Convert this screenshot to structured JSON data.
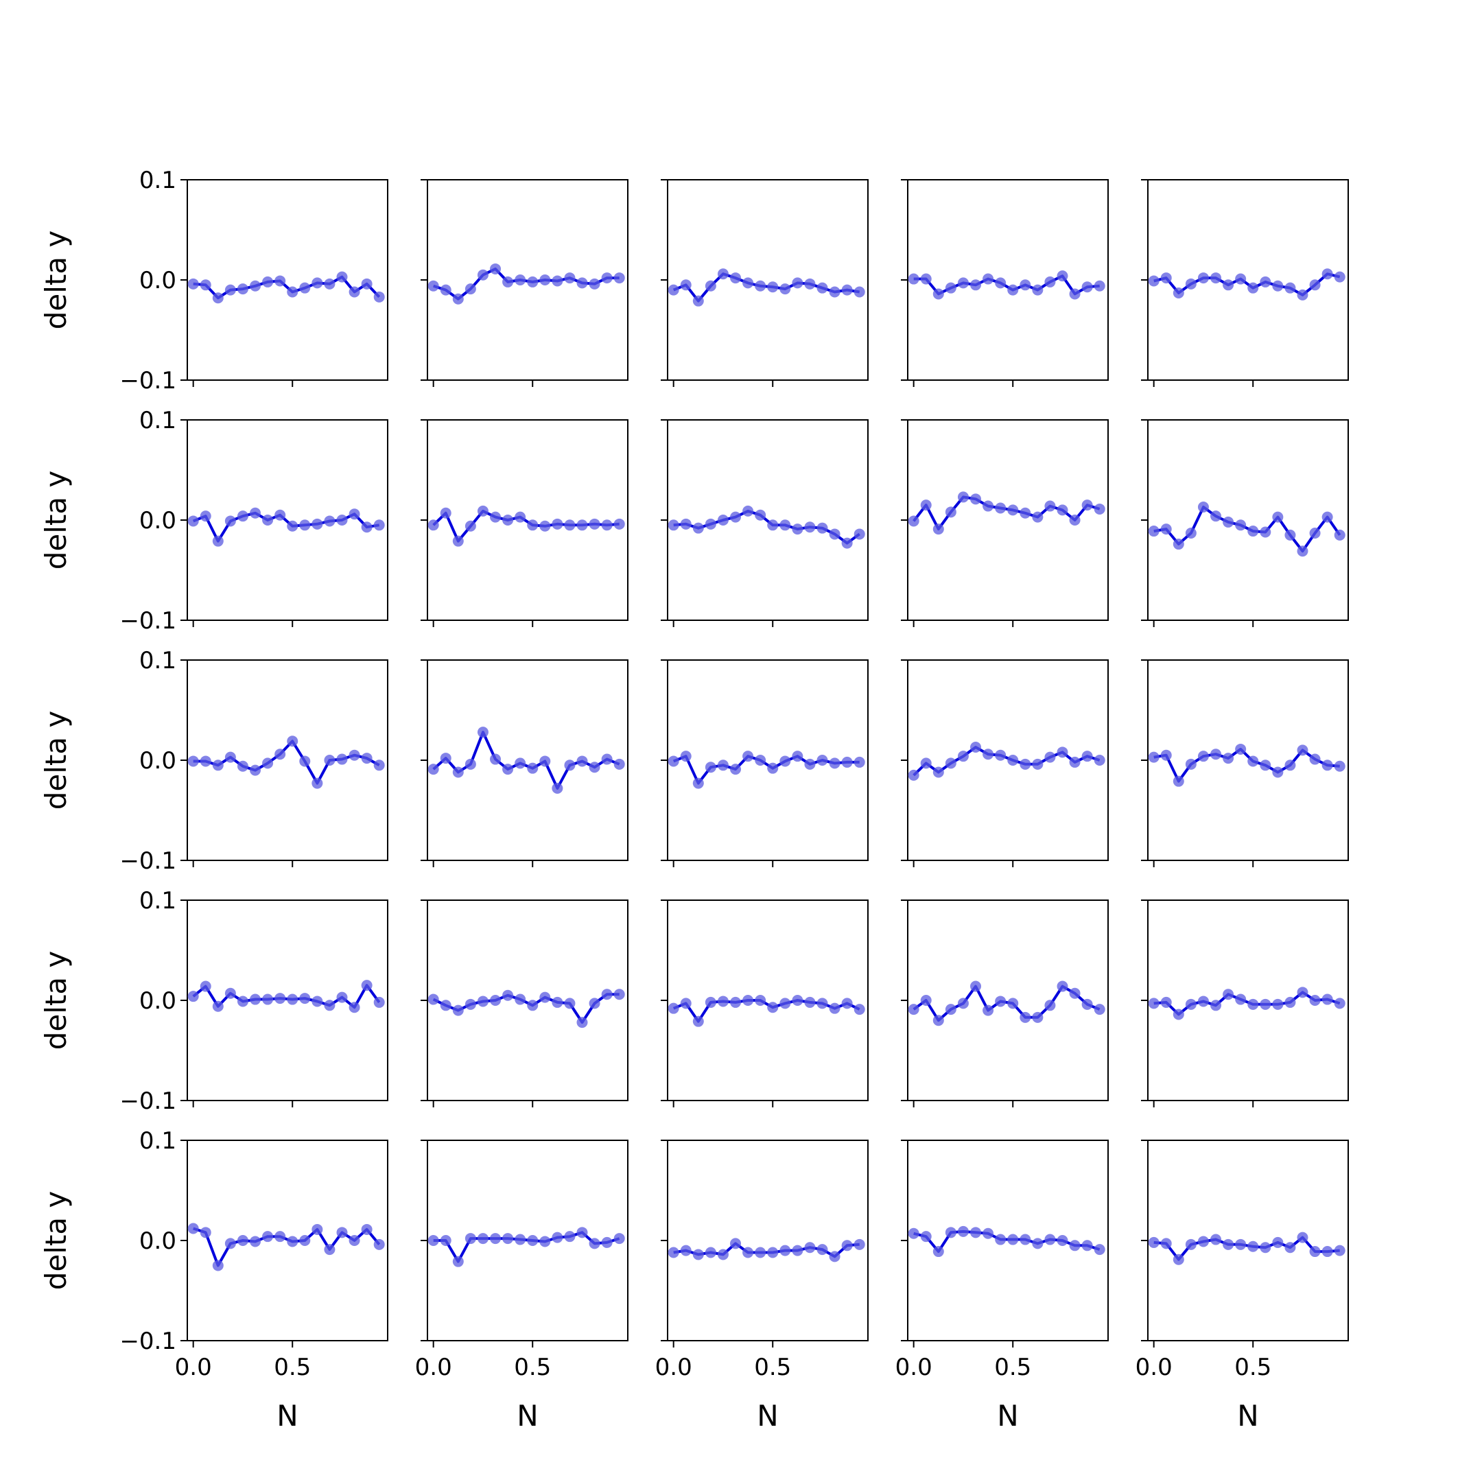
{
  "chart_data": {
    "type": "line",
    "layout": "5x5 grid of small multiples, shared x and y axes",
    "xlabel": "N",
    "ylabel": "delta y",
    "xlim": [
      -0.03,
      0.98
    ],
    "ylim": [
      -0.1,
      0.1
    ],
    "xticks": [
      0.0,
      0.5
    ],
    "xtick_labels": [
      "0.0",
      "0.5"
    ],
    "yticks": [
      -0.1,
      0.0,
      0.1
    ],
    "ytick_labels": [
      "−0.1",
      "0.0",
      "0.1"
    ],
    "line_color": "#0000dd",
    "marker_color": "#5a5ae0",
    "x": [
      0.0,
      0.0625,
      0.125,
      0.1875,
      0.25,
      0.3125,
      0.375,
      0.4375,
      0.5,
      0.5625,
      0.625,
      0.6875,
      0.75,
      0.8125,
      0.875,
      0.9375
    ],
    "panels": [
      {
        "values": [
          -0.004,
          -0.005,
          -0.018,
          -0.01,
          -0.009,
          -0.006,
          -0.002,
          -0.001,
          -0.012,
          -0.008,
          -0.003,
          -0.004,
          0.003,
          -0.012,
          -0.004,
          -0.017
        ]
      },
      {
        "values": [
          -0.006,
          -0.01,
          -0.019,
          -0.009,
          0.005,
          0.011,
          -0.002,
          0.0,
          -0.002,
          0.0,
          -0.001,
          0.002,
          -0.003,
          -0.004,
          0.002,
          0.002
        ]
      },
      {
        "values": [
          -0.01,
          -0.005,
          -0.021,
          -0.006,
          0.006,
          0.002,
          -0.003,
          -0.006,
          -0.007,
          -0.009,
          -0.003,
          -0.004,
          -0.008,
          -0.012,
          -0.01,
          -0.012
        ]
      },
      {
        "values": [
          0.001,
          0.001,
          -0.014,
          -0.008,
          -0.003,
          -0.005,
          0.001,
          -0.003,
          -0.01,
          -0.005,
          -0.01,
          -0.002,
          0.004,
          -0.014,
          -0.007,
          -0.006
        ]
      },
      {
        "values": [
          -0.001,
          0.002,
          -0.013,
          -0.004,
          0.002,
          0.002,
          -0.005,
          0.001,
          -0.008,
          -0.002,
          -0.006,
          -0.008,
          -0.015,
          -0.005,
          0.006,
          0.003
        ]
      },
      {
        "values": [
          -0.001,
          0.004,
          -0.021,
          -0.001,
          0.004,
          0.007,
          0.0,
          0.005,
          -0.006,
          -0.005,
          -0.004,
          -0.001,
          0.0,
          0.006,
          -0.007,
          -0.005
        ]
      },
      {
        "values": [
          -0.005,
          0.007,
          -0.021,
          -0.006,
          0.009,
          0.003,
          0.0,
          0.003,
          -0.005,
          -0.006,
          -0.004,
          -0.005,
          -0.005,
          -0.004,
          -0.005,
          -0.004
        ]
      },
      {
        "values": [
          -0.005,
          -0.004,
          -0.008,
          -0.004,
          0.0,
          0.003,
          0.009,
          0.005,
          -0.005,
          -0.005,
          -0.009,
          -0.007,
          -0.008,
          -0.014,
          -0.023,
          -0.014
        ]
      },
      {
        "values": [
          -0.001,
          0.015,
          -0.009,
          0.008,
          0.023,
          0.021,
          0.014,
          0.012,
          0.01,
          0.007,
          0.003,
          0.014,
          0.01,
          0.0,
          0.015,
          0.011
        ]
      },
      {
        "values": [
          -0.011,
          -0.009,
          -0.024,
          -0.013,
          0.013,
          0.004,
          -0.002,
          -0.005,
          -0.011,
          -0.012,
          0.003,
          -0.015,
          -0.031,
          -0.013,
          0.003,
          -0.015
        ]
      },
      {
        "values": [
          -0.001,
          -0.001,
          -0.005,
          0.003,
          -0.006,
          -0.01,
          -0.003,
          0.006,
          0.019,
          -0.001,
          -0.023,
          0.0,
          0.001,
          0.005,
          0.002,
          -0.005
        ]
      },
      {
        "values": [
          -0.009,
          0.002,
          -0.012,
          -0.004,
          0.028,
          0.001,
          -0.009,
          -0.003,
          -0.008,
          -0.001,
          -0.028,
          -0.005,
          -0.001,
          -0.007,
          0.001,
          -0.004
        ]
      },
      {
        "values": [
          -0.001,
          0.004,
          -0.023,
          -0.007,
          -0.005,
          -0.009,
          0.004,
          0.0,
          -0.008,
          -0.001,
          0.004,
          -0.004,
          0.0,
          -0.003,
          -0.002,
          -0.002
        ]
      },
      {
        "values": [
          -0.015,
          -0.003,
          -0.012,
          -0.003,
          0.004,
          0.013,
          0.006,
          0.005,
          0.0,
          -0.004,
          -0.004,
          0.003,
          0.008,
          -0.002,
          0.004,
          0.0
        ]
      },
      {
        "values": [
          0.003,
          0.005,
          -0.021,
          -0.004,
          0.004,
          0.006,
          0.002,
          0.011,
          -0.001,
          -0.005,
          -0.012,
          -0.005,
          0.01,
          0.001,
          -0.005,
          -0.006
        ]
      },
      {
        "values": [
          0.004,
          0.014,
          -0.006,
          0.007,
          -0.001,
          0.001,
          0.001,
          0.002,
          0.001,
          0.002,
          -0.001,
          -0.005,
          0.003,
          -0.007,
          0.015,
          -0.002
        ]
      },
      {
        "values": [
          0.001,
          -0.005,
          -0.01,
          -0.004,
          -0.001,
          0.0,
          0.005,
          0.001,
          -0.005,
          0.003,
          -0.002,
          -0.003,
          -0.022,
          -0.003,
          0.006,
          0.006
        ]
      },
      {
        "values": [
          -0.008,
          -0.003,
          -0.021,
          -0.002,
          -0.001,
          -0.002,
          0.0,
          0.0,
          -0.007,
          -0.003,
          0.0,
          -0.002,
          -0.003,
          -0.008,
          -0.003,
          -0.009
        ]
      },
      {
        "values": [
          -0.009,
          0.0,
          -0.02,
          -0.009,
          -0.003,
          0.014,
          -0.01,
          -0.001,
          -0.003,
          -0.017,
          -0.017,
          -0.005,
          0.014,
          0.007,
          -0.004,
          -0.009
        ]
      },
      {
        "values": [
          -0.003,
          -0.002,
          -0.014,
          -0.004,
          -0.001,
          -0.005,
          0.006,
          0.001,
          -0.004,
          -0.004,
          -0.004,
          -0.002,
          0.008,
          0.0,
          0.001,
          -0.003
        ]
      },
      {
        "values": [
          0.012,
          0.008,
          -0.025,
          -0.003,
          0.0,
          -0.001,
          0.004,
          0.004,
          -0.001,
          0.0,
          0.011,
          -0.009,
          0.008,
          0.0,
          0.011,
          -0.004
        ]
      },
      {
        "values": [
          0.0,
          0.0,
          -0.021,
          0.002,
          0.002,
          0.002,
          0.002,
          0.001,
          0.0,
          -0.001,
          0.003,
          0.004,
          0.008,
          -0.003,
          -0.002,
          0.002
        ]
      },
      {
        "values": [
          -0.012,
          -0.01,
          -0.014,
          -0.012,
          -0.014,
          -0.003,
          -0.012,
          -0.012,
          -0.012,
          -0.01,
          -0.01,
          -0.007,
          -0.009,
          -0.016,
          -0.005,
          -0.004
        ]
      },
      {
        "values": [
          0.007,
          0.004,
          -0.011,
          0.008,
          0.009,
          0.008,
          0.007,
          0.001,
          0.001,
          0.001,
          -0.003,
          0.001,
          0.0,
          -0.005,
          -0.005,
          -0.009
        ]
      },
      {
        "values": [
          -0.002,
          -0.003,
          -0.019,
          -0.004,
          -0.001,
          0.001,
          -0.004,
          -0.004,
          -0.006,
          -0.007,
          -0.002,
          -0.007,
          0.003,
          -0.011,
          -0.011,
          -0.01
        ]
      }
    ]
  }
}
